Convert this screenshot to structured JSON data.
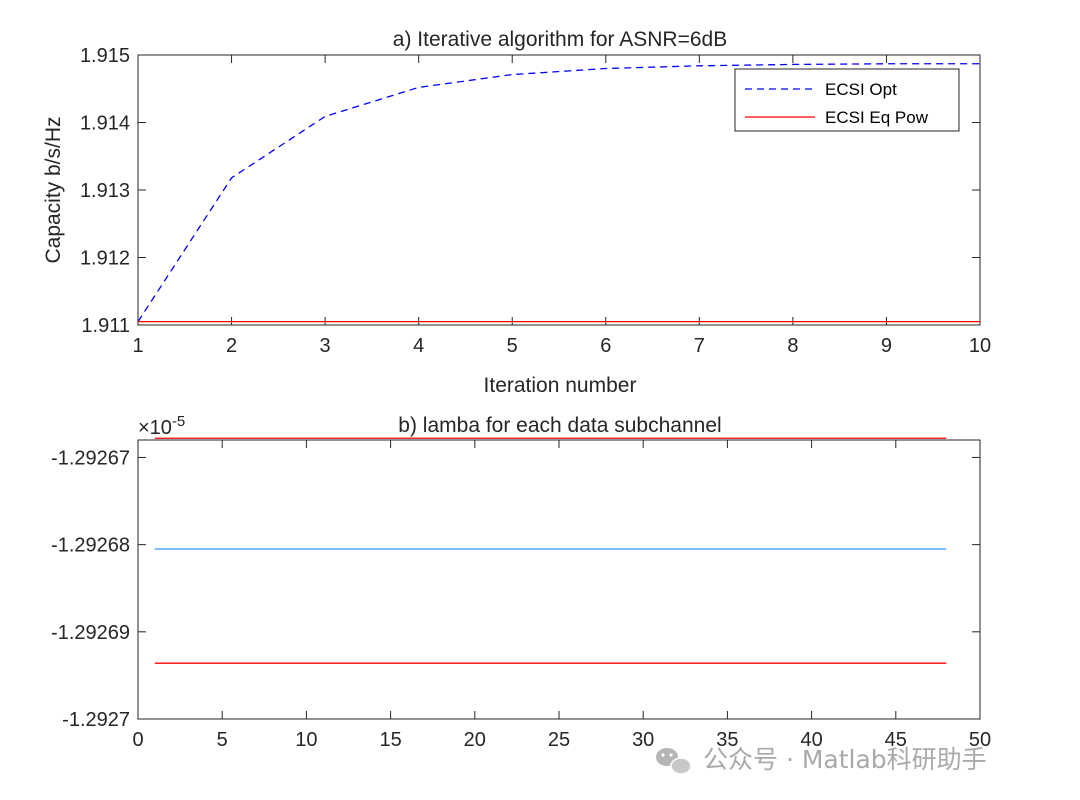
{
  "chart_data": [
    {
      "type": "line",
      "title": "a) Iterative algorithm for ASNR=6dB",
      "xlabel": "Iteration number",
      "ylabel": "Capacity b/s/Hz",
      "xlim": [
        1,
        10
      ],
      "ylim": [
        1.911,
        1.915
      ],
      "xticks": [
        "1",
        "2",
        "3",
        "4",
        "5",
        "6",
        "7",
        "8",
        "9",
        "10"
      ],
      "yticks": [
        "1.911",
        "1.912",
        "1.913",
        "1.914",
        "1.915"
      ],
      "grid": false,
      "legend_position": "top-right",
      "x": [
        1,
        2,
        3,
        4,
        5,
        6,
        7,
        8,
        9,
        10
      ],
      "series": [
        {
          "name": "ECSI Opt",
          "color": "#0000ff",
          "style": "dashed",
          "values": [
            1.91105,
            1.91318,
            1.91409,
            1.91452,
            1.91471,
            1.9148,
            1.91484,
            1.91486,
            1.91487,
            1.91487
          ]
        },
        {
          "name": "ECSI Eq Pow",
          "color": "#ff0000",
          "style": "solid",
          "values": [
            1.91105,
            1.91105,
            1.91105,
            1.91105,
            1.91105,
            1.91105,
            1.91105,
            1.91105,
            1.91105,
            1.91105
          ]
        }
      ]
    },
    {
      "type": "line",
      "title": "b) lamba for each data subchannel",
      "xlabel": "",
      "ylabel": "",
      "xlim": [
        0,
        50
      ],
      "ylim": [
        -1.2927,
        -1.292668
      ],
      "exponent_label": "×10",
      "exponent_power": "-5",
      "xticks": [
        "0",
        "5",
        "10",
        "15",
        "20",
        "25",
        "30",
        "35",
        "40",
        "45",
        "50"
      ],
      "yticks": [
        "-1.2927",
        "-1.29269",
        "-1.29268",
        "-1.29267"
      ],
      "grid": false,
      "x": [
        1,
        48
      ],
      "series": [
        {
          "color": "#ff0000",
          "values": [
            -1.2926678,
            -1.2926678
          ]
        },
        {
          "color": "#3399ff",
          "values": [
            -1.2926805,
            -1.2926805
          ]
        },
        {
          "color": "#ff0000",
          "values": [
            -1.2926936,
            -1.2926936
          ]
        }
      ]
    }
  ],
  "watermark": {
    "text": "公众号 · Matlab科研助手",
    "icon": "wechat-icon"
  }
}
